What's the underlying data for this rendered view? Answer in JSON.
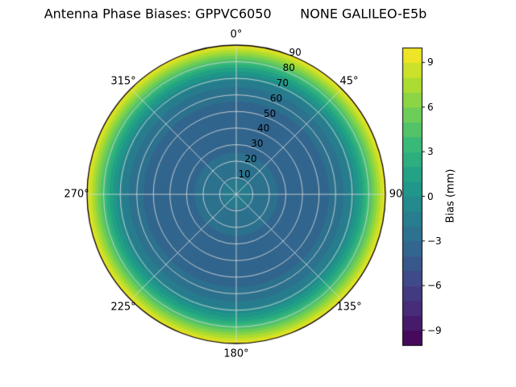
{
  "chart_data": {
    "type": "polar_contour",
    "title": "Antenna Phase Biases: GPPVC6050       NONE GALILEO-E5b",
    "colormap": "viridis",
    "angular_ticks": [
      {
        "angle_deg": 0,
        "label": "0°"
      },
      {
        "angle_deg": 45,
        "label": "45°"
      },
      {
        "angle_deg": 90,
        "label": "90"
      },
      {
        "angle_deg": 135,
        "label": "135°"
      },
      {
        "angle_deg": 180,
        "label": "180°"
      },
      {
        "angle_deg": 225,
        "label": "225°"
      },
      {
        "angle_deg": 270,
        "label": "270°"
      },
      {
        "angle_deg": 315,
        "label": "315°"
      }
    ],
    "radial_ticks": [
      10,
      20,
      30,
      40,
      50,
      60,
      70,
      80,
      90
    ],
    "radial_max": 90,
    "radial_label_azimuth_deg": 22.5,
    "colorbar": {
      "label": "Bias (mm)",
      "ticks": [
        9,
        6,
        3,
        0,
        -3,
        -6,
        -9
      ],
      "vmin": -10,
      "vmax": 10
    },
    "level_step_mm": 1,
    "viridis_stops": [
      "#440154",
      "#482878",
      "#3e4989",
      "#31688e",
      "#26828e",
      "#1f9e89",
      "#35b779",
      "#6ece58",
      "#b5de2b",
      "#fde725"
    ],
    "radial_profile": {
      "zenith_deg": [
        0,
        5,
        10,
        15,
        20,
        25,
        30,
        40,
        50,
        55,
        60,
        65,
        70,
        75,
        80,
        85,
        90
      ],
      "bias_mm": [
        -1.4,
        -1.7,
        -2.1,
        -2.5,
        -2.8,
        -3.0,
        -3.2,
        -3.4,
        -3.3,
        -3.1,
        -2.7,
        -2.0,
        -0.8,
        1.2,
        3.8,
        6.8,
        9.6
      ]
    },
    "grid": {
      "angular_step_deg": 45,
      "radial_step": 10,
      "color": "#d9d9d9"
    }
  }
}
